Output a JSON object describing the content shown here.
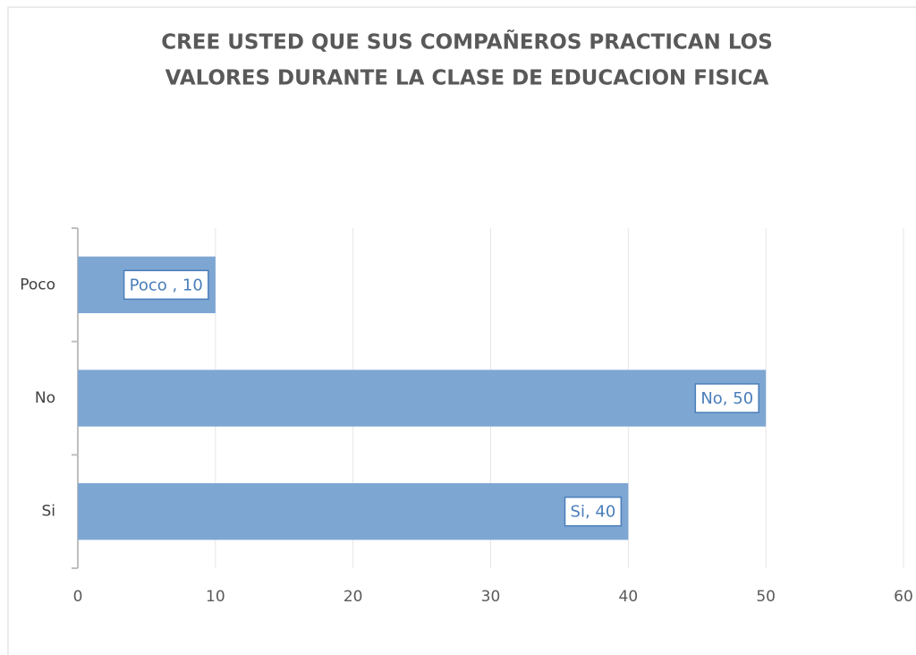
{
  "chart_data": {
    "type": "bar",
    "orientation": "horizontal",
    "title": [
      "CREE USTED QUE SUS COMPAÑEROS PRACTICAN LOS",
      "VALORES DURANTE LA CLASE DE EDUCACION FISICA"
    ],
    "categories": [
      "Poco",
      "No",
      "Si"
    ],
    "values": [
      10,
      50,
      40
    ],
    "value_labels": [
      "Poco , 10",
      "No, 50",
      "Si, 40"
    ],
    "color": "#7ea6d2",
    "xlim": [
      0,
      60
    ],
    "xticks": [
      0,
      10,
      20,
      30,
      40,
      50,
      60
    ],
    "grid": true
  }
}
